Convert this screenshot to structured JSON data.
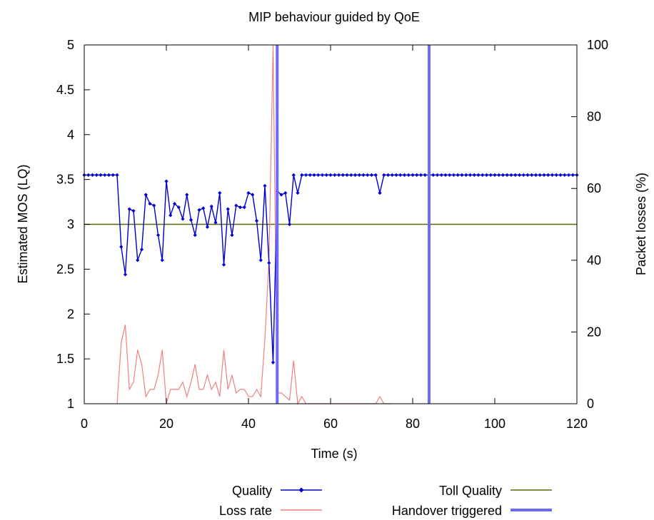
{
  "chart_data": {
    "type": "line",
    "title": "MIP behaviour guided by QoE",
    "xlabel": "Time (s)",
    "ylabel": "Estimated MOS (LQ)",
    "y2label": "Packet losses (%)",
    "xlim": [
      0,
      120
    ],
    "ylim": [
      1,
      5
    ],
    "y2lim": [
      0,
      100
    ],
    "xticks": [
      0,
      20,
      40,
      60,
      80,
      100,
      120
    ],
    "yticks": [
      1,
      1.5,
      2,
      2.5,
      3,
      3.5,
      4,
      4.5,
      5
    ],
    "y2ticks": [
      0,
      20,
      40,
      60,
      80,
      100
    ],
    "grid": false,
    "legend_position": "bottom",
    "series": [
      {
        "name": "Quality",
        "axis": "left",
        "color": "#0000cc",
        "marker": "diamond",
        "x": [
          0,
          1,
          2,
          3,
          4,
          5,
          6,
          7,
          8,
          9,
          10,
          11,
          12,
          13,
          14,
          15,
          16,
          17,
          18,
          19,
          20,
          21,
          22,
          23,
          24,
          25,
          26,
          27,
          28,
          29,
          30,
          31,
          32,
          33,
          34,
          35,
          36,
          37,
          38,
          39,
          40,
          41,
          42,
          43,
          44,
          45,
          46,
          47,
          48,
          49,
          50,
          51,
          52,
          53,
          54,
          55,
          56,
          57,
          58,
          59,
          60,
          61,
          62,
          63,
          64,
          65,
          66,
          67,
          68,
          69,
          70,
          71,
          72,
          73,
          74,
          75,
          76,
          77,
          78,
          79,
          80,
          81,
          82,
          83,
          84,
          85,
          86,
          87,
          88,
          89,
          90,
          91,
          92,
          93,
          94,
          95,
          96,
          97,
          98,
          99,
          100,
          101,
          102,
          103,
          104,
          105,
          106,
          107,
          108,
          109,
          110,
          111,
          112,
          113,
          114,
          115,
          116,
          117,
          118,
          119,
          120
        ],
        "values": [
          3.55,
          3.55,
          3.55,
          3.55,
          3.55,
          3.55,
          3.55,
          3.55,
          3.55,
          2.75,
          2.44,
          3.17,
          3.15,
          2.6,
          2.72,
          3.33,
          3.23,
          3.21,
          2.88,
          2.6,
          3.48,
          3.1,
          3.23,
          3.19,
          3.06,
          3.33,
          3.05,
          2.88,
          3.16,
          3.18,
          2.97,
          3.2,
          3.02,
          3.35,
          2.55,
          3.17,
          2.88,
          3.21,
          3.19,
          3.19,
          3.35,
          3.33,
          3.04,
          2.6,
          3.43,
          2.57,
          1.46,
          3.37,
          3.33,
          3.35,
          3.0,
          3.55,
          3.35,
          3.55,
          3.55,
          3.55,
          3.55,
          3.55,
          3.55,
          3.55,
          3.55,
          3.55,
          3.55,
          3.55,
          3.55,
          3.55,
          3.55,
          3.55,
          3.55,
          3.55,
          3.55,
          3.55,
          3.35,
          3.55,
          3.55,
          3.55,
          3.55,
          3.55,
          3.55,
          3.55,
          3.55,
          3.55,
          3.55,
          3.55,
          3.55,
          3.55,
          3.55,
          3.55,
          3.55,
          3.55,
          3.55,
          3.55,
          3.55,
          3.55,
          3.55,
          3.55,
          3.55,
          3.55,
          3.55,
          3.55,
          3.55,
          3.55,
          3.55,
          3.55,
          3.55,
          3.55,
          3.55,
          3.55,
          3.55,
          3.55,
          3.55,
          3.55,
          3.55,
          3.55,
          3.55,
          3.55,
          3.55,
          3.55,
          3.55,
          3.55,
          3.55
        ]
      },
      {
        "name": "Loss rate",
        "axis": "right",
        "color": "#f08080",
        "x": [
          8,
          9,
          10,
          11,
          12,
          13,
          14,
          15,
          16,
          17,
          18,
          19,
          20,
          21,
          22,
          23,
          24,
          25,
          26,
          27,
          28,
          29,
          30,
          31,
          32,
          33,
          34,
          35,
          36,
          37,
          38,
          39,
          40,
          41,
          42,
          43,
          44,
          45,
          46,
          47,
          48,
          49,
          50,
          51,
          52,
          53,
          54,
          55,
          56,
          57,
          58,
          59,
          60,
          61,
          62,
          63,
          64,
          65,
          66,
          67,
          68,
          69,
          70,
          71,
          72,
          73,
          74,
          75
        ],
        "values": [
          0,
          17,
          22,
          4,
          6,
          15,
          11,
          2,
          4,
          4,
          8,
          15,
          0,
          4,
          4,
          4,
          6,
          2,
          6,
          11,
          4,
          4,
          8,
          4,
          6,
          2,
          15,
          4,
          8,
          3,
          4,
          4,
          2,
          2,
          4,
          2,
          18,
          40,
          100,
          3,
          3,
          2,
          1,
          12,
          0,
          2,
          0,
          0,
          0,
          0,
          0,
          0,
          0,
          0,
          0,
          0,
          0,
          0,
          0,
          0,
          0,
          0,
          0,
          0,
          2,
          0,
          0,
          0
        ]
      },
      {
        "name": "Toll Quality",
        "axis": "left",
        "color": "#556b00",
        "constant": 3
      },
      {
        "name": "Handover triggered",
        "axis": "left",
        "color": "#6a6aff",
        "vertical_lines_x": [
          47,
          84
        ]
      }
    ]
  }
}
